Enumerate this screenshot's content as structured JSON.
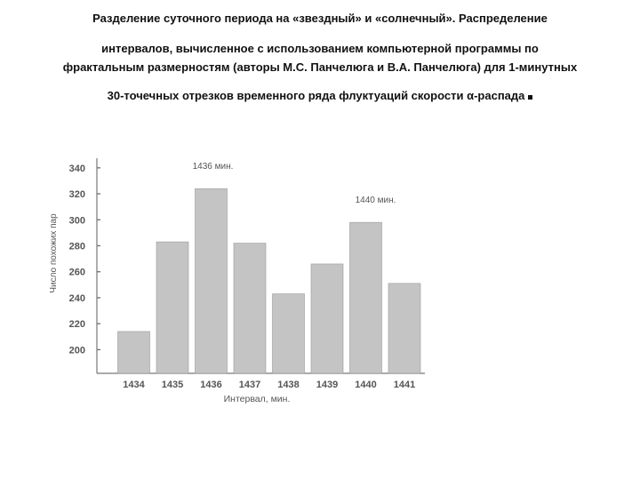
{
  "caption": {
    "line1": "Разделение суточного периода на «звездный» и «солнечный». Распределение",
    "line2": "интервалов, вычисленное с использованием компьютерной программы по",
    "line3": "фрактальным размерностям (авторы М.С. Панчелюга и В.А. Панчелюга) для 1-минутных",
    "line4_pre": "30-точечных отрезков временного ряда флуктуаций скорости ",
    "line4_symbol": "α",
    "line4_post": "-распада"
  },
  "chart_data": {
    "type": "bar",
    "categories": [
      "1434",
      "1435",
      "1436",
      "1437",
      "1438",
      "1439",
      "1440",
      "1441"
    ],
    "values": [
      214,
      283,
      324,
      282,
      243,
      266,
      298,
      251
    ],
    "ylim": [
      190,
      345
    ],
    "yticks": [
      200,
      220,
      240,
      260,
      280,
      300,
      320,
      340
    ],
    "xlabel": "Интервал, мин.",
    "ylabel": "Число похожих пар",
    "annotations": [
      {
        "text": "1436 мин.",
        "category": "1436"
      },
      {
        "text": "1440 мин.",
        "category": "1440"
      }
    ],
    "grid": false,
    "colors": {
      "bar": "#c4c4c4",
      "bar_edge": "#9a9a9a",
      "axis": "#777777",
      "text": "#555555"
    }
  }
}
